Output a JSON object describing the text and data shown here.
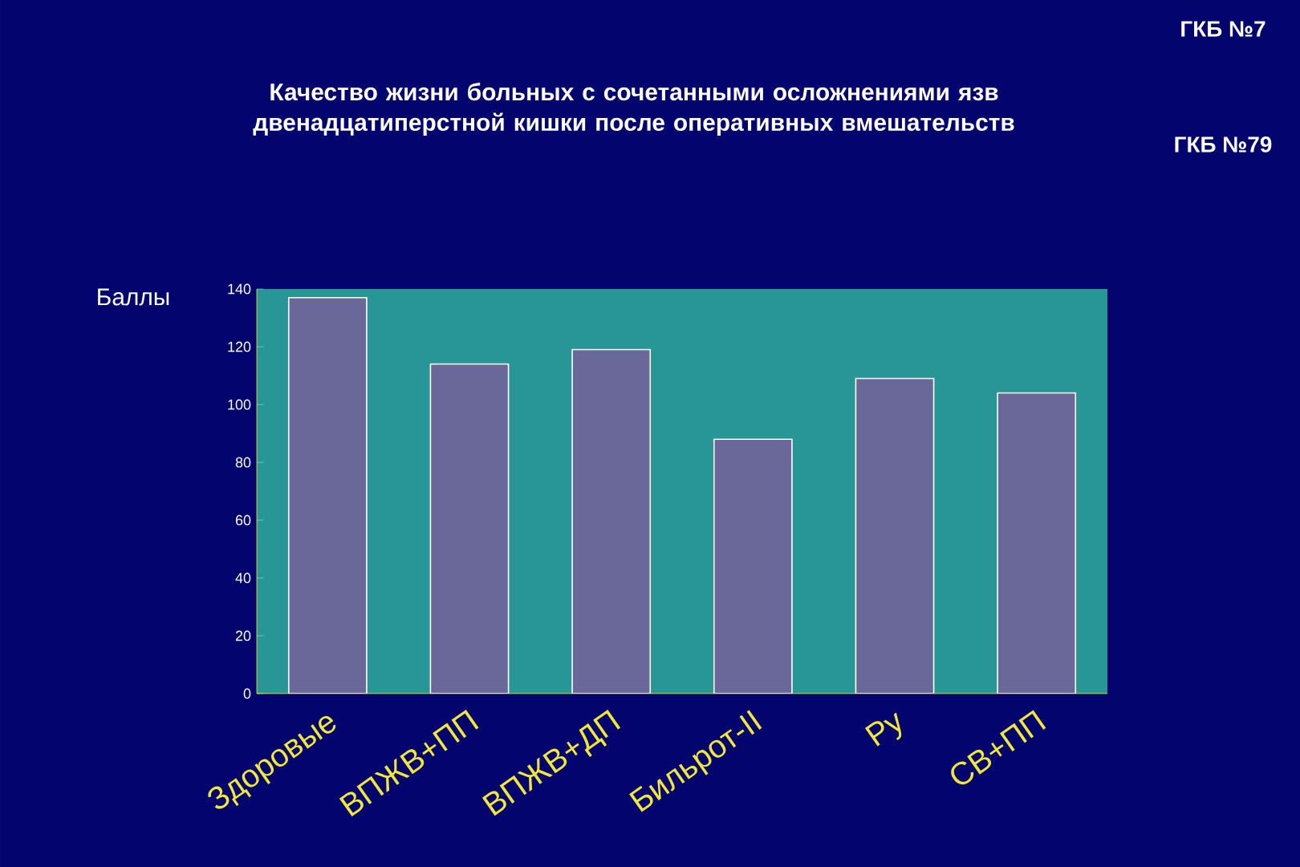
{
  "chart_data": {
    "type": "bar",
    "title": "Качество жизни больных с сочетанными осложнениями язв двенадцатиперстной кишки после оперативных вмешательств",
    "ylabel": "Баллы",
    "categories": [
      "Здоровые",
      "ВПЖВ+ПП",
      "ВПЖВ+ДП",
      "Бильрот-II",
      "Ру",
      "СВ+ПП"
    ],
    "values": [
      137,
      114,
      119,
      88,
      109,
      104
    ],
    "color": "#6a6898",
    "ylim": [
      0,
      140
    ],
    "yticks": [
      0,
      20,
      40,
      60,
      80,
      100,
      120,
      140
    ],
    "annotations": [
      "ГКБ №7",
      "ГКБ №79"
    ]
  }
}
